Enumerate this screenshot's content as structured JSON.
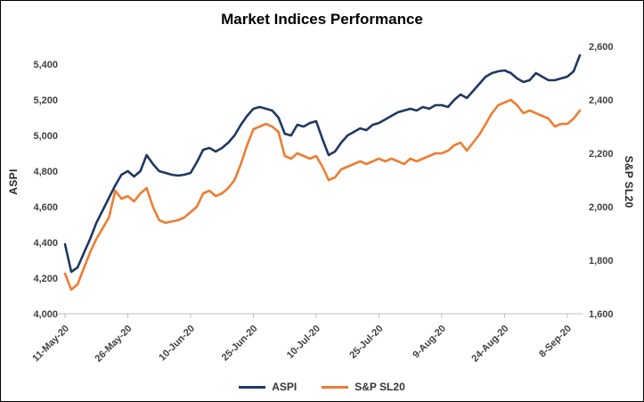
{
  "chart_data": {
    "type": "line",
    "title": "Market Indices Performance",
    "grid": false,
    "legend_position": "bottom",
    "x_tick_labels": [
      "11-May-20",
      "26-May-20",
      "10-Jun-20",
      "25-Jun-20",
      "10-Jul-20",
      "25-Jul-20",
      "9-Aug-20",
      "24-Aug-20",
      "8-Sep-20"
    ],
    "x_tick_indices": [
      0,
      10,
      20,
      30,
      40,
      50,
      60,
      70,
      80
    ],
    "left_axis": {
      "title": "ASPI",
      "min": 4000,
      "max": 5500,
      "ticks": [
        4000,
        4200,
        4400,
        4600,
        4800,
        5000,
        5200,
        5400
      ]
    },
    "right_axis": {
      "title": "S&P SL20",
      "min": 1600,
      "max": 2600,
      "ticks": [
        1600,
        1800,
        2000,
        2200,
        2400,
        2600
      ]
    },
    "series": [
      {
        "name": "ASPI",
        "axis": "left",
        "color": "#1F3864",
        "values": [
          4390,
          4235,
          4260,
          4340,
          4420,
          4510,
          4580,
          4650,
          4720,
          4780,
          4800,
          4770,
          4800,
          4890,
          4840,
          4800,
          4790,
          4780,
          4775,
          4780,
          4790,
          4850,
          4920,
          4930,
          4910,
          4930,
          4960,
          5000,
          5060,
          5110,
          5150,
          5160,
          5150,
          5140,
          5100,
          5010,
          5000,
          5060,
          5050,
          5070,
          5080,
          4980,
          4890,
          4910,
          4960,
          5000,
          5020,
          5040,
          5030,
          5060,
          5070,
          5090,
          5110,
          5130,
          5140,
          5150,
          5140,
          5160,
          5150,
          5170,
          5170,
          5160,
          5200,
          5230,
          5210,
          5250,
          5290,
          5330,
          5350,
          5360,
          5365,
          5350,
          5320,
          5300,
          5310,
          5350,
          5330,
          5310,
          5310,
          5320,
          5330,
          5360,
          5450
        ]
      },
      {
        "name": "S&P SL20",
        "axis": "right",
        "color": "#ED7D31",
        "values": [
          1750,
          1690,
          1710,
          1770,
          1830,
          1880,
          1920,
          1960,
          2060,
          2030,
          2040,
          2020,
          2050,
          2070,
          2000,
          1950,
          1940,
          1945,
          1950,
          1960,
          1980,
          2000,
          2050,
          2060,
          2040,
          2050,
          2070,
          2100,
          2160,
          2230,
          2290,
          2300,
          2310,
          2300,
          2280,
          2190,
          2180,
          2200,
          2190,
          2180,
          2190,
          2150,
          2100,
          2110,
          2140,
          2150,
          2160,
          2170,
          2160,
          2170,
          2180,
          2170,
          2180,
          2170,
          2160,
          2180,
          2170,
          2180,
          2190,
          2200,
          2200,
          2210,
          2230,
          2240,
          2210,
          2240,
          2270,
          2310,
          2350,
          2380,
          2390,
          2400,
          2380,
          2350,
          2360,
          2350,
          2340,
          2330,
          2300,
          2310,
          2310,
          2330,
          2360
        ]
      }
    ]
  }
}
